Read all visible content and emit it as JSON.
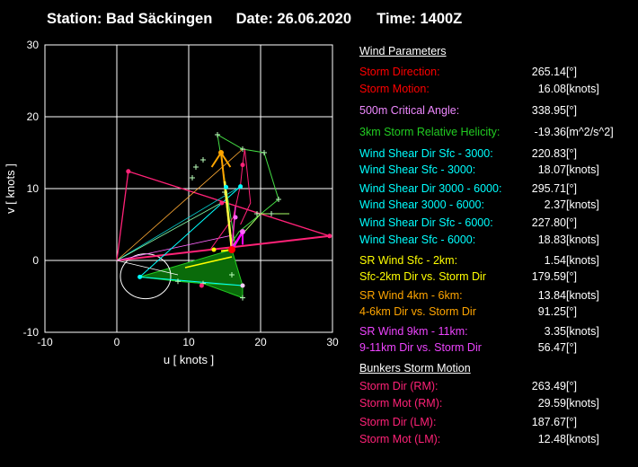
{
  "header": {
    "station": "Station: Bad Säckingen",
    "date": "Date: 26.06.2020",
    "time": "Time: 1400Z"
  },
  "chart_data": {
    "type": "hodograph",
    "title": "",
    "xlabel": "u  [ knots ]",
    "ylabel": "v  [ knots ]",
    "xlim": [
      -10,
      30
    ],
    "ylim": [
      -10,
      30
    ],
    "xticks": [
      -10,
      0,
      10,
      20,
      30
    ],
    "yticks": [
      -10,
      0,
      10,
      20,
      30
    ],
    "grid": true,
    "tick_labels": {
      "x": [
        "-10",
        "0",
        "10",
        "20",
        "30"
      ],
      "y": [
        "-10",
        "0",
        "10",
        "20",
        "30"
      ]
    },
    "storm_motion_point": [
      16.0,
      1.5
    ],
    "bunkers_rm_point": [
      29.6,
      3.4
    ],
    "bunkers_lm_point": [
      1.6,
      12.4
    ],
    "wind_profile_low": [
      [
        3.2,
        -2.3
      ],
      [
        8.5,
        -2.9
      ],
      [
        12.0,
        -3.2
      ],
      [
        17.5,
        -3.5
      ]
    ],
    "wind_profile_mid": [
      [
        13.0,
        1.5
      ],
      [
        16.2,
        6.0
      ],
      [
        17.2,
        10.5
      ],
      [
        17.5,
        13.3
      ],
      [
        17.8,
        15.5
      ],
      [
        18.6,
        8.0
      ],
      [
        17.2,
        5.0
      ]
    ],
    "wind_profile_upper": [
      [
        16.5,
        2.0
      ],
      [
        14.0,
        17.5
      ],
      [
        17.5,
        15.5
      ],
      [
        20.5,
        15.0
      ],
      [
        22.5,
        8.5
      ],
      [
        17.0,
        4.0
      ],
      [
        16.0,
        2.5
      ]
    ],
    "upper_trace": [
      [
        16.0,
        2.0
      ],
      [
        20.0,
        6.5
      ],
      [
        24.0,
        6.5
      ]
    ],
    "shear_vectors": [
      {
        "name": "Wind Shear Sfc - 3000",
        "color": "#00ffff",
        "to": [
          17.2,
          10.3
        ]
      },
      {
        "name": "Wind Shear 3000 - 6000",
        "color": "#00ffff",
        "to": [
          13.5,
          2.5
        ]
      },
      {
        "name": "SR Wind 4km-6km",
        "color": "#ffa500",
        "to": [
          14.5,
          15.0
        ]
      },
      {
        "name": "Sfc-2km",
        "color": "#ffff00",
        "to": [
          14.5,
          1.3
        ]
      },
      {
        "name": "SR Wind 9km-11km",
        "color": "#ff00ff",
        "to": [
          17.5,
          4.0
        ]
      }
    ]
  },
  "params": {
    "wind_title": "Wind Parameters",
    "rows": [
      {
        "label": "Storm Direction:",
        "value": "265.14",
        "unit": "[°]",
        "color": "#ff0000"
      },
      {
        "label": "Storm Motion:",
        "value": "16.08",
        "unit": "[knots]",
        "color": "#ff0000"
      },
      {
        "label": "500m Critical Angle:",
        "value": "338.95",
        "unit": "[°]",
        "color": "#ee88ff"
      },
      {
        "label": "3km Storm Relative Helicity:",
        "value": "-19.36",
        "unit": "[m^2/s^2]",
        "color": "#22cc22"
      },
      {
        "label": "Wind Shear Dir Sfc - 3000:",
        "value": "220.83",
        "unit": "[°]",
        "color": "#00ffff"
      },
      {
        "label": "Wind Shear Sfc - 3000:",
        "value": "18.07",
        "unit": "[knots]",
        "color": "#00ffff"
      },
      {
        "label": "Wind Shear Dir 3000 - 6000:",
        "value": "295.71",
        "unit": "[°]",
        "color": "#00ffff"
      },
      {
        "label": "Wind Shear 3000 - 6000:",
        "value": "2.37",
        "unit": "[knots]",
        "color": "#00ffff"
      },
      {
        "label": "Wind Shear Dir Sfc - 6000:",
        "value": "227.80",
        "unit": "[°]",
        "color": "#00ffff"
      },
      {
        "label": "Wind Shear Sfc - 6000:",
        "value": "18.83",
        "unit": "[knots]",
        "color": "#00ffff"
      },
      {
        "label": "SR Wind Sfc - 2km:",
        "value": "1.54",
        "unit": "[knots]",
        "color": "#ffff00"
      },
      {
        "label": "Sfc-2km Dir vs. Storm Dir",
        "value": "179.59",
        "unit": "[°]",
        "color": "#ffff00"
      },
      {
        "label": "SR Wind 4km - 6km:",
        "value": "13.84",
        "unit": "[knots]",
        "color": "#ffa500"
      },
      {
        "label": "4-6km Dir vs. Storm Dir",
        "value": "91.25",
        "unit": "[°]",
        "color": "#ffa500"
      },
      {
        "label": "SR Wind 9km - 11km:",
        "value": "3.35",
        "unit": "[knots]",
        "color": "#ee44ff"
      },
      {
        "label": "9-11km Dir vs. Storm Dir",
        "value": "56.47",
        "unit": "[°]",
        "color": "#ee44ff"
      }
    ],
    "bunkers_title": "Bunkers Storm Motion",
    "bunkers_rows": [
      {
        "label": "Storm Dir (RM):",
        "value": "263.49",
        "unit": "[°]",
        "color": "#ff2277"
      },
      {
        "label": "Storm Mot (RM):",
        "value": "29.59",
        "unit": "[knots]",
        "color": "#ff2277"
      },
      {
        "label": "Storm Dir (LM):",
        "value": "187.67",
        "unit": "[°]",
        "color": "#ff2277"
      },
      {
        "label": "Storm Mot (LM):",
        "value": "12.48",
        "unit": "[knots]",
        "color": "#ff2277"
      }
    ]
  }
}
